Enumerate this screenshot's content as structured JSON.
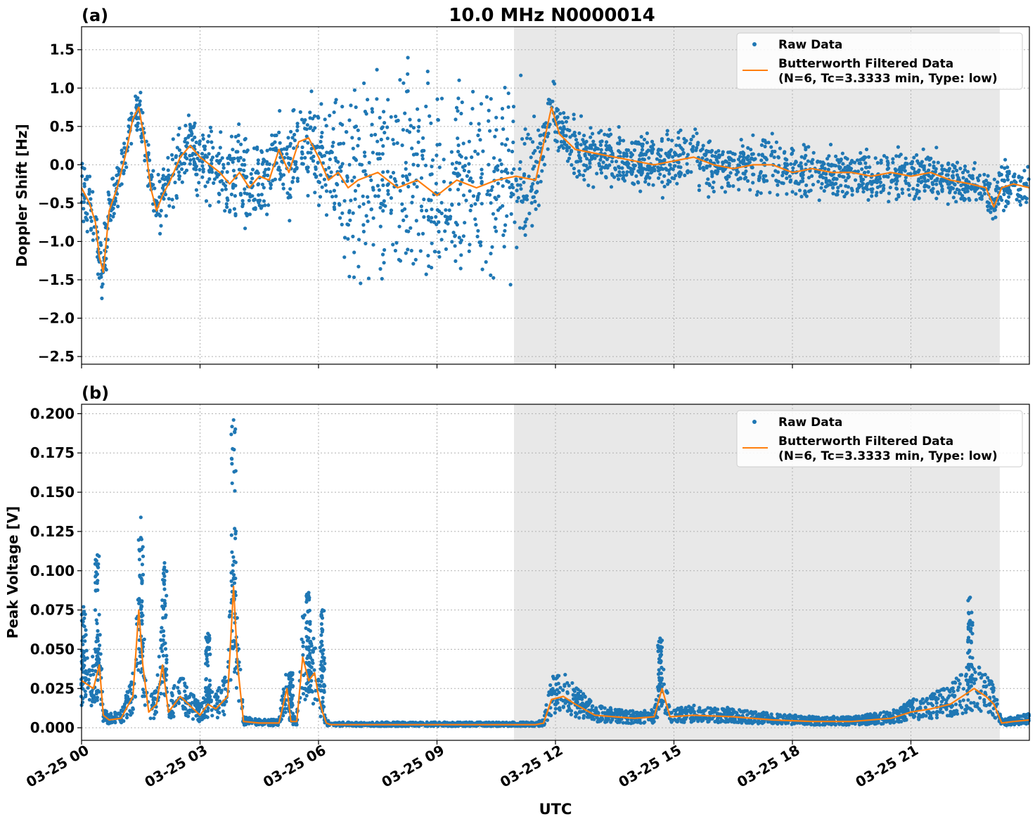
{
  "figure": {
    "title": "10.0 MHz N0000014",
    "xlabel": "UTC",
    "xtick_labels": [
      "03-25 00",
      "03-25 03",
      "03-25 06",
      "03-25 09",
      "03-25 12",
      "03-25 15",
      "03-25 18",
      "03-25 21"
    ],
    "night_shading": {
      "start_hour": 10.95,
      "end_hour": 23.25,
      "color": "#e8e8e8"
    },
    "colors": {
      "raw": "#1f77b4",
      "filtered": "#ff7f0e",
      "grid": "#b0b0b0"
    }
  },
  "chart_data": [
    {
      "type": "scatter",
      "panel_label": "(a)",
      "ylabel": "Doppler Shift [Hz]",
      "xlim_hours": [
        0,
        24
      ],
      "ylim": [
        -2.6,
        1.8
      ],
      "yticks": [
        -2.5,
        -2.0,
        -1.5,
        -1.0,
        -0.5,
        0.0,
        0.5,
        1.0,
        1.5
      ],
      "ytick_labels": [
        "−2.5",
        "−2.0",
        "−1.5",
        "−1.0",
        "−0.5",
        "0.0",
        "0.5",
        "1.0",
        "1.5"
      ],
      "grid": true,
      "legend_position": "top-right",
      "legend": {
        "raw": "Raw Data",
        "filtered_line1": "Butterworth Filtered Data",
        "filtered_line2": "(N=6, Tc=3.3333 min, Type: low)"
      },
      "series": [
        {
          "name": "Butterworth Filtered Data",
          "hours": [
            0.0,
            0.2,
            0.35,
            0.45,
            0.55,
            0.7,
            0.9,
            1.1,
            1.3,
            1.45,
            1.6,
            1.75,
            1.9,
            2.05,
            2.25,
            2.5,
            2.75,
            3.0,
            3.25,
            3.5,
            3.75,
            4.0,
            4.25,
            4.5,
            4.75,
            5.0,
            5.25,
            5.5,
            5.75,
            6.0,
            6.25,
            6.5,
            6.75,
            7.0,
            7.5,
            8.0,
            8.5,
            9.0,
            9.5,
            10.0,
            10.5,
            11.0,
            11.5,
            11.75,
            11.9,
            12.1,
            12.5,
            13.0,
            13.5,
            14.0,
            14.5,
            15.0,
            15.5,
            16.0,
            16.5,
            17.0,
            17.5,
            18.0,
            18.5,
            19.0,
            19.5,
            20.0,
            20.5,
            21.0,
            21.5,
            22.0,
            22.5,
            22.9,
            23.1,
            23.3,
            23.6,
            24.0
          ],
          "values": [
            -0.3,
            -0.5,
            -0.75,
            -1.2,
            -1.4,
            -0.6,
            -0.3,
            0.1,
            0.6,
            0.75,
            0.3,
            -0.3,
            -0.6,
            -0.4,
            -0.2,
            0.1,
            0.25,
            0.1,
            0.0,
            -0.1,
            -0.25,
            -0.1,
            -0.3,
            -0.15,
            -0.2,
            0.2,
            -0.1,
            0.3,
            0.35,
            0.1,
            -0.2,
            -0.1,
            -0.3,
            -0.2,
            -0.1,
            -0.3,
            -0.2,
            -0.4,
            -0.2,
            -0.3,
            -0.2,
            -0.15,
            -0.2,
            0.4,
            0.75,
            0.4,
            0.2,
            0.15,
            0.1,
            0.05,
            0.0,
            0.05,
            0.1,
            0.0,
            -0.05,
            0.0,
            0.0,
            -0.1,
            -0.05,
            -0.1,
            -0.1,
            -0.15,
            -0.1,
            -0.15,
            -0.1,
            -0.2,
            -0.25,
            -0.3,
            -0.55,
            -0.3,
            -0.25,
            -0.3
          ]
        },
        {
          "name": "Raw Data",
          "spread_hours": [
            0,
            1,
            1.5,
            2.5,
            4,
            5,
            6.2,
            7,
            8,
            9,
            10,
            11,
            11.8,
            12.5,
            14,
            16,
            18,
            20,
            22,
            23.25,
            24
          ],
          "spread_values": [
            0.4,
            0.3,
            0.3,
            0.35,
            0.5,
            0.45,
            0.6,
            1.1,
            1.1,
            1.1,
            1.0,
            1.0,
            0.3,
            0.3,
            0.3,
            0.3,
            0.3,
            0.25,
            0.25,
            0.25,
            0.25
          ]
        }
      ]
    },
    {
      "type": "scatter",
      "panel_label": "(b)",
      "ylabel": "Peak Voltage [V]",
      "xlim_hours": [
        0,
        24
      ],
      "ylim": [
        -0.008,
        0.206
      ],
      "yticks": [
        0.0,
        0.025,
        0.05,
        0.075,
        0.1,
        0.125,
        0.15,
        0.175,
        0.2
      ],
      "ytick_labels": [
        "0.000",
        "0.025",
        "0.050",
        "0.075",
        "0.100",
        "0.125",
        "0.150",
        "0.175",
        "0.200"
      ],
      "grid": true,
      "legend_position": "top-right",
      "legend": {
        "raw": "Raw Data",
        "filtered_line1": "Butterworth Filtered Data",
        "filtered_line2": "(N=6, Tc=3.3333 min, Type: low)"
      },
      "series": [
        {
          "name": "Butterworth Filtered Data",
          "hours": [
            0.0,
            0.3,
            0.45,
            0.55,
            0.7,
            1.0,
            1.3,
            1.45,
            1.55,
            1.7,
            1.9,
            2.05,
            2.2,
            2.5,
            3.0,
            3.2,
            3.4,
            3.7,
            3.85,
            3.95,
            4.1,
            4.5,
            5.0,
            5.2,
            5.3,
            5.45,
            5.6,
            5.75,
            5.9,
            6.0,
            6.1,
            6.2,
            6.3,
            6.6,
            7,
            8,
            9,
            10,
            11,
            11.5,
            11.7,
            11.9,
            12.2,
            12.5,
            13.0,
            14.0,
            14.5,
            14.7,
            14.9,
            15.5,
            16.5,
            17.5,
            18.5,
            19.5,
            20.5,
            21.0,
            21.5,
            22.0,
            22.3,
            22.6,
            22.9,
            23.1,
            23.3,
            23.6,
            24.0
          ],
          "values": [
            0.03,
            0.025,
            0.04,
            0.008,
            0.005,
            0.006,
            0.02,
            0.075,
            0.04,
            0.01,
            0.015,
            0.04,
            0.01,
            0.02,
            0.008,
            0.015,
            0.012,
            0.02,
            0.09,
            0.04,
            0.004,
            0.003,
            0.003,
            0.025,
            0.004,
            0.004,
            0.045,
            0.03,
            0.035,
            0.02,
            0.01,
            0.003,
            0.002,
            0.002,
            0.002,
            0.002,
            0.002,
            0.002,
            0.002,
            0.002,
            0.003,
            0.018,
            0.02,
            0.015,
            0.008,
            0.006,
            0.007,
            0.025,
            0.007,
            0.008,
            0.007,
            0.005,
            0.004,
            0.004,
            0.006,
            0.01,
            0.012,
            0.015,
            0.02,
            0.025,
            0.02,
            0.015,
            0.003,
            0.004,
            0.005
          ]
        },
        {
          "name": "Raw Data",
          "peak_hours": [
            0.05,
            0.4,
            1.5,
            2.1,
            3.2,
            3.85,
            5.3,
            5.75,
            6.1,
            14.65,
            22.5
          ],
          "peak_values": [
            0.077,
            0.11,
            0.134,
            0.105,
            0.06,
            0.196,
            0.035,
            0.086,
            0.075,
            0.057,
            0.083
          ]
        }
      ]
    }
  ]
}
